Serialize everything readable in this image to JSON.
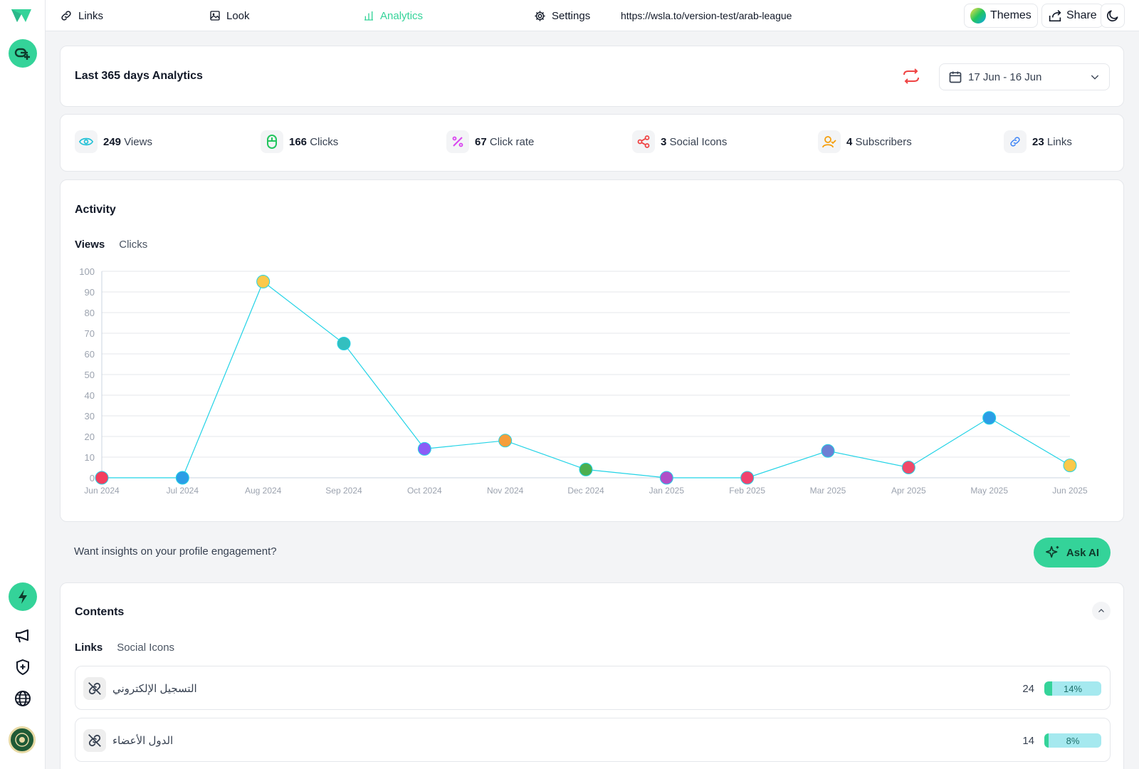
{
  "topbar": {
    "nav": [
      {
        "label": "Links",
        "icon": "link-icon"
      },
      {
        "label": "Look",
        "icon": "image-icon"
      },
      {
        "label": "Analytics",
        "icon": "bar-chart-icon",
        "active": true
      },
      {
        "label": "Settings",
        "icon": "gear-icon"
      }
    ],
    "url": "https://wsla.to/version-test/arab-league",
    "themes_label": "Themes",
    "share_label": "Share"
  },
  "header": {
    "title": "Last 365 days Analytics",
    "date_range": "17 Jun - 16 Jun"
  },
  "stats": [
    {
      "value": "249",
      "label": "Views",
      "icon": "eye-icon",
      "color": "#22c1d6"
    },
    {
      "value": "166",
      "label": "Clicks",
      "icon": "mouse-icon",
      "color": "#22c55e"
    },
    {
      "value": "67",
      "label": "Click rate",
      "icon": "percent-icon",
      "color": "#d946ef"
    },
    {
      "value": "3",
      "label": "Social Icons",
      "icon": "share-nodes-icon",
      "color": "#ef4444"
    },
    {
      "value": "4",
      "label": "Subscribers",
      "icon": "user-check-icon",
      "color": "#f59e0b"
    },
    {
      "value": "23",
      "label": "Links",
      "icon": "link-icon",
      "color": "#3b82f6"
    }
  ],
  "activity": {
    "title": "Activity",
    "tabs": [
      "Views",
      "Clicks"
    ],
    "active_tab": "Views"
  },
  "chart_data": {
    "type": "line",
    "categories": [
      "Jun 2024",
      "Jul 2024",
      "Aug 2024",
      "Sep 2024",
      "Oct 2024",
      "Nov 2024",
      "Dec 2024",
      "Jan 2025",
      "Feb 2025",
      "Mar 2025",
      "Apr 2025",
      "May 2025",
      "Jun 2025"
    ],
    "values": [
      0,
      0,
      95,
      65,
      14,
      18,
      4,
      0,
      0,
      13,
      5,
      29,
      6
    ],
    "point_colors": [
      "#f43f5e",
      "#2b9de6",
      "#fbc94a",
      "#33bfbf",
      "#8b5cf6",
      "#f59e3b",
      "#4caf50",
      "#b04fc7",
      "#f0426e",
      "#6c7fd4",
      "#f04a6a",
      "#2b9de6",
      "#fbc94a"
    ],
    "line_color": "#22d3e6",
    "ylim": [
      0,
      100
    ],
    "yticks": [
      0,
      10,
      20,
      30,
      40,
      50,
      60,
      70,
      80,
      90,
      100
    ],
    "grid": true,
    "title": "",
    "xlabel": "",
    "ylabel": ""
  },
  "insight": {
    "text": "Want insights on your profile engagement?",
    "ask_label": "Ask AI"
  },
  "contents": {
    "title": "Contents",
    "tabs": [
      "Links",
      "Social Icons"
    ],
    "active_tab": "Links",
    "rows": [
      {
        "label": "التسجيل الإلكتروني",
        "count": "24",
        "percent": "14%",
        "fraction": 0.14
      },
      {
        "label": "الدول الأعضاء",
        "count": "14",
        "percent": "8%",
        "fraction": 0.08
      }
    ]
  },
  "colors": {
    "accent": "#34d399"
  }
}
